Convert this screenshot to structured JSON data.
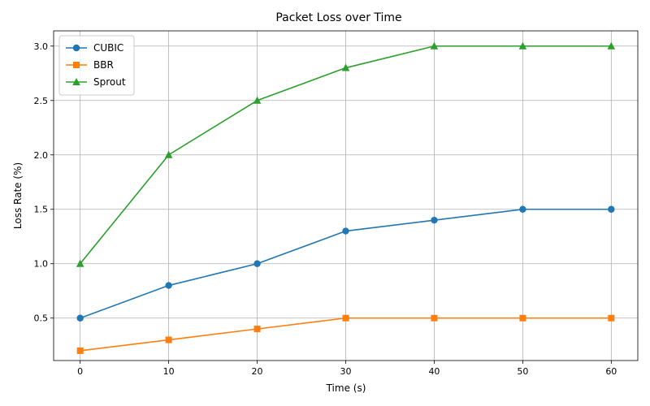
{
  "chart_data": {
    "type": "line",
    "title": "Packet Loss over Time",
    "xlabel": "Time (s)",
    "ylabel": "Loss Rate (%)",
    "x": [
      0,
      10,
      20,
      30,
      40,
      50,
      60
    ],
    "xticks": [
      "0",
      "10",
      "20",
      "30",
      "40",
      "50",
      "60"
    ],
    "yticks": [
      "0.5",
      "1.0",
      "1.5",
      "2.0",
      "2.5",
      "3.0"
    ],
    "xlim": [
      -3,
      63
    ],
    "ylim": [
      0.11,
      3.14
    ],
    "grid": true,
    "legend_position": "upper left",
    "series": [
      {
        "name": "CUBIC",
        "color": "#1f77b4",
        "marker": "circle",
        "values": [
          0.5,
          0.8,
          1.0,
          1.3,
          1.4,
          1.5,
          1.5
        ]
      },
      {
        "name": "BBR",
        "color": "#ff7f0e",
        "marker": "square",
        "values": [
          0.2,
          0.3,
          0.4,
          0.5,
          0.5,
          0.5,
          0.5
        ]
      },
      {
        "name": "Sprout",
        "color": "#2ca02c",
        "marker": "triangle",
        "values": [
          1.0,
          2.0,
          2.5,
          2.8,
          3.0,
          3.0,
          3.0
        ]
      }
    ]
  }
}
